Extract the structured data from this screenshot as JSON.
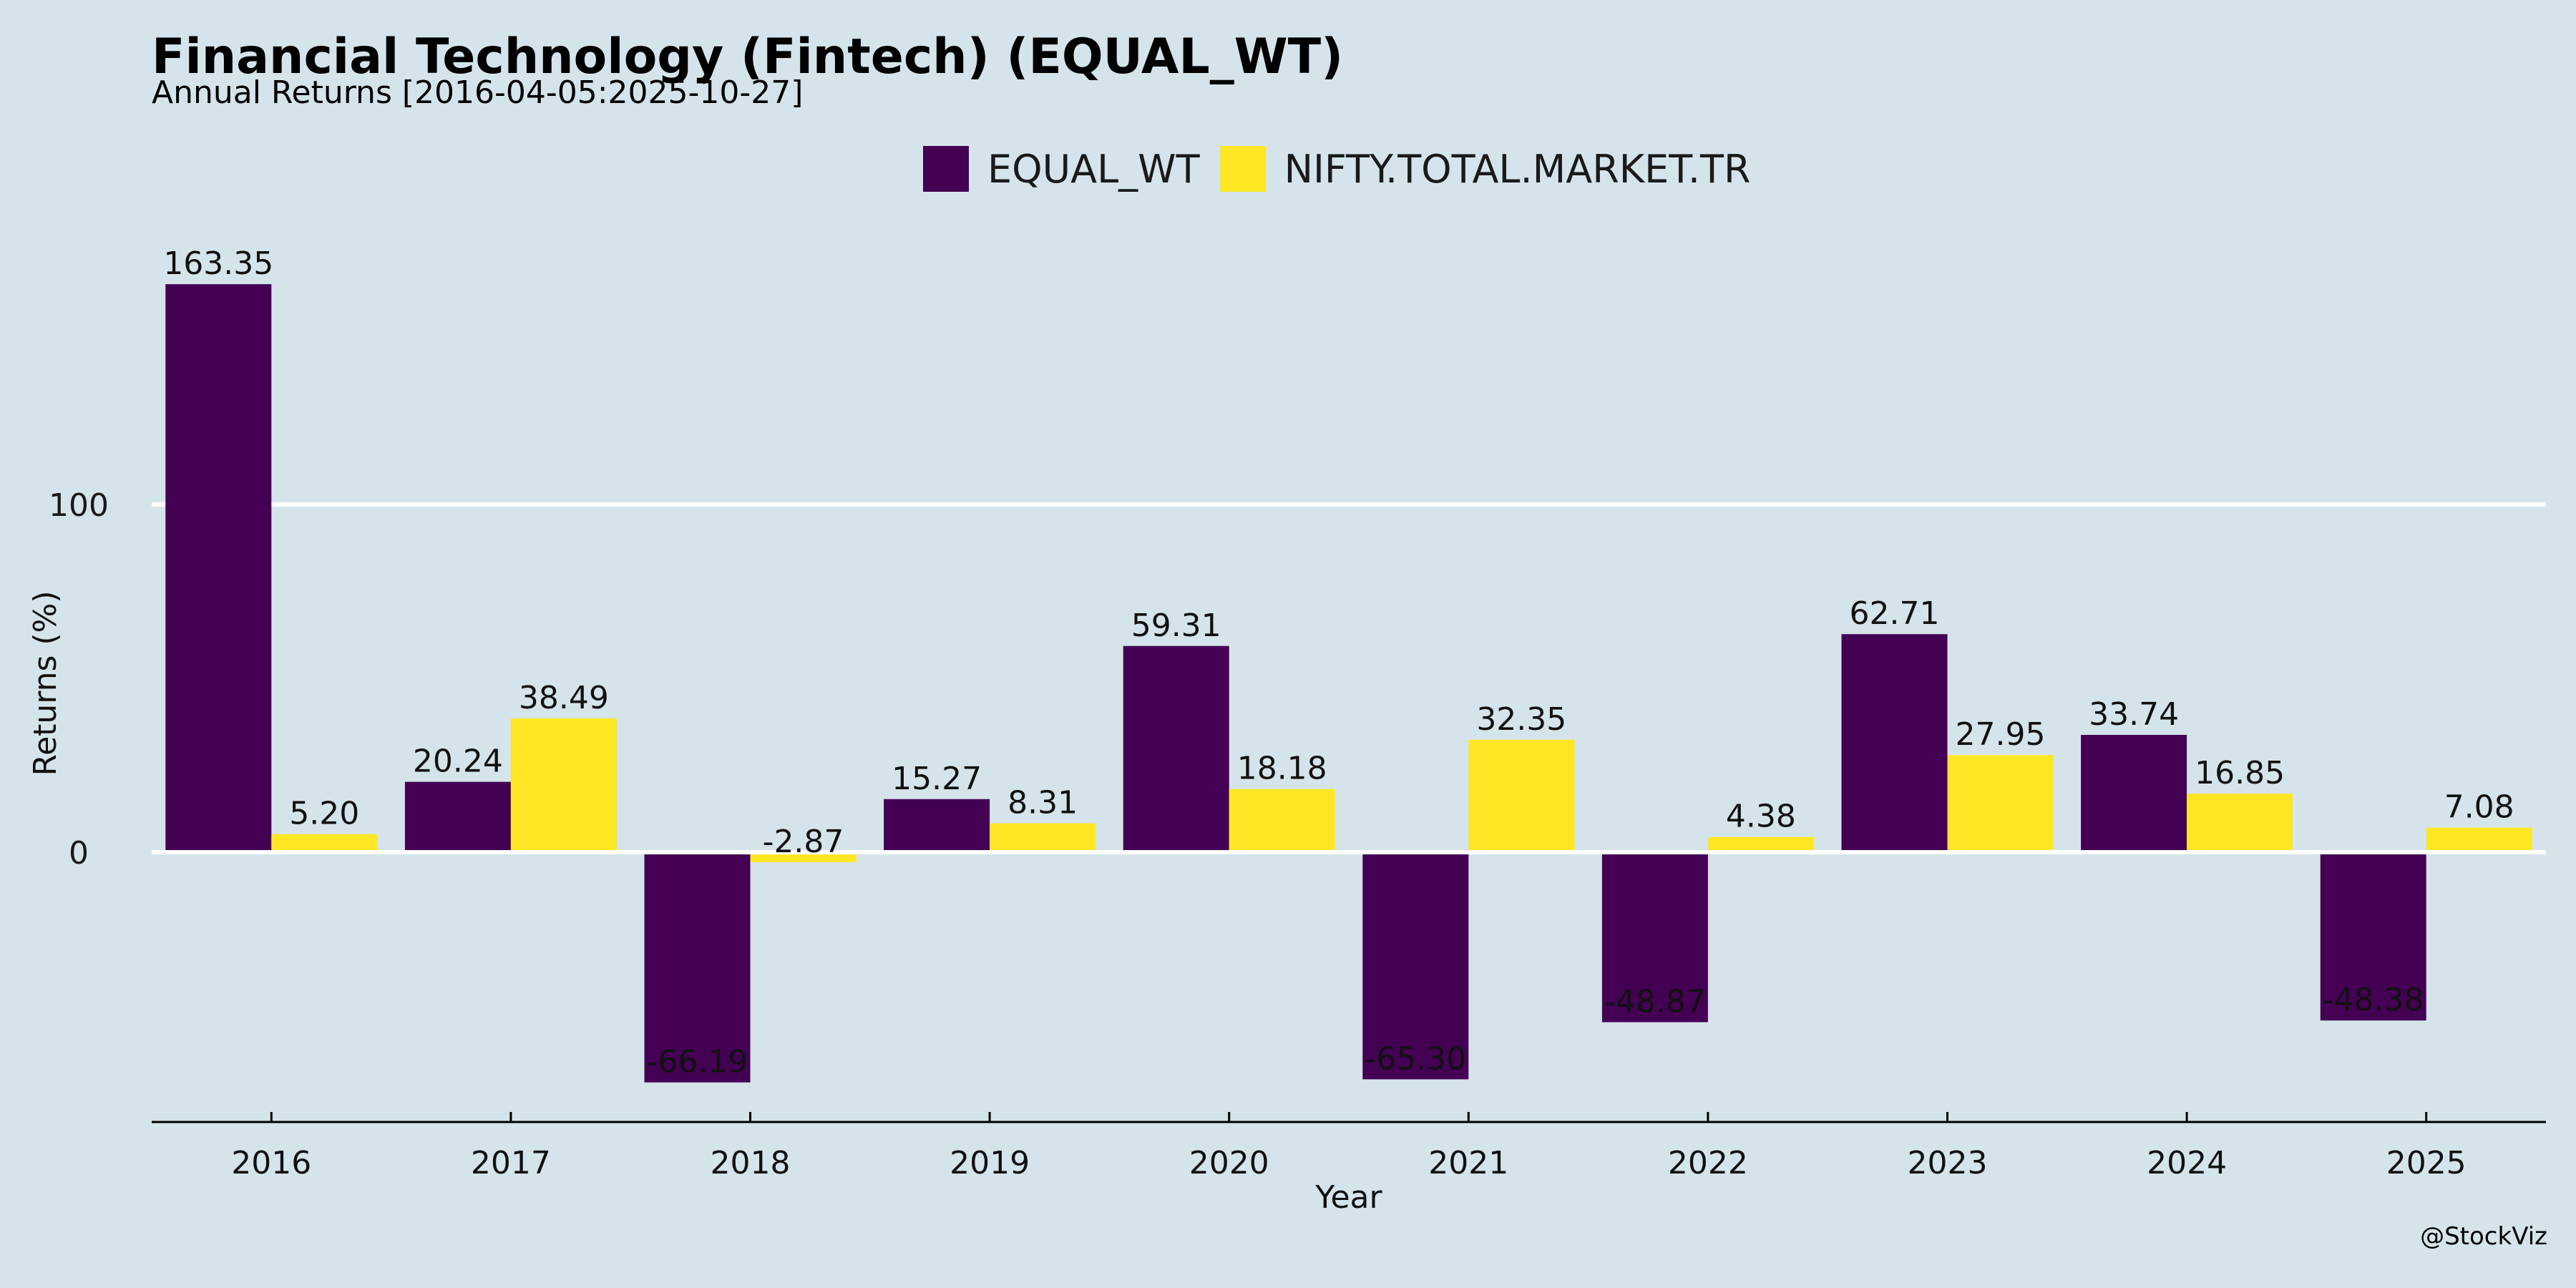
{
  "chart_data": {
    "type": "bar",
    "title": "Financial Technology (Fintech) (EQUAL_WT)",
    "subtitle": "Annual Returns [2016-04-05:2025-10-27]",
    "xlabel": "Year",
    "ylabel": "Returns (%)",
    "categories": [
      "2016",
      "2017",
      "2018",
      "2019",
      "2020",
      "2021",
      "2022",
      "2023",
      "2024",
      "2025"
    ],
    "series": [
      {
        "name": "EQUAL_WT",
        "color": "#440154",
        "values": [
          163.35,
          20.24,
          -66.19,
          15.27,
          59.31,
          -65.3,
          -48.87,
          62.71,
          33.74,
          -48.38
        ],
        "labels": [
          "163.35",
          "20.24",
          "-66.19",
          "15.27",
          "59.31",
          "-65.30",
          "-48.87",
          "62.71",
          "33.74",
          "-48.38"
        ]
      },
      {
        "name": "NIFTY.TOTAL.MARKET.TR",
        "color": "#fde725",
        "values": [
          5.2,
          38.49,
          -2.87,
          8.31,
          18.18,
          32.35,
          4.38,
          27.95,
          16.85,
          7.08
        ],
        "labels": [
          "5.20",
          "38.49",
          "-2.87",
          "8.31",
          "18.18",
          "32.35",
          "4.38",
          "27.95",
          "16.85",
          "7.08"
        ]
      }
    ],
    "yticks": [
      0,
      100
    ],
    "ylim": [
      -78,
      172
    ],
    "grid": true,
    "legend_position": "top-center"
  },
  "watermark": "@StockViz"
}
